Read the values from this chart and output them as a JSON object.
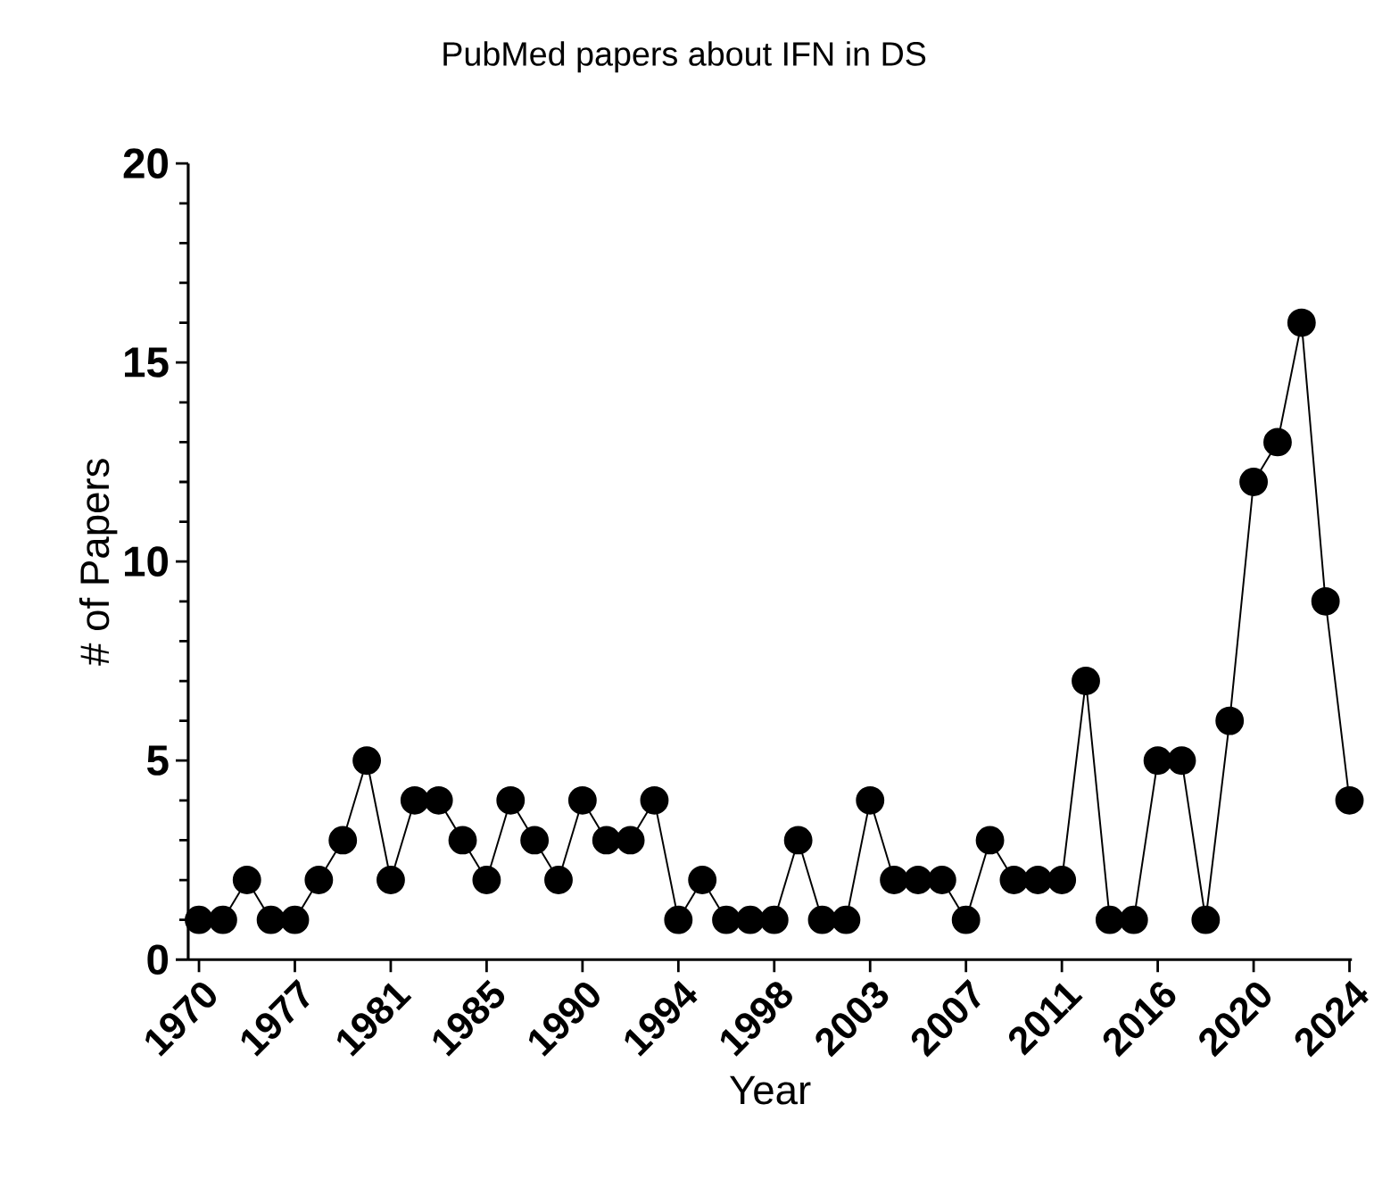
{
  "chart_data": {
    "type": "line",
    "title": "PubMed papers about IFN in DS",
    "xlabel": "Year",
    "ylabel": "# of Papers",
    "categories": [
      "1970",
      null,
      null,
      null,
      "1977",
      null,
      null,
      null,
      "1981",
      null,
      null,
      null,
      "1985",
      null,
      null,
      null,
      "1990",
      null,
      null,
      null,
      "1994",
      null,
      null,
      null,
      "1998",
      null,
      null,
      null,
      "2003",
      null,
      null,
      null,
      "2007",
      null,
      null,
      null,
      "2011",
      null,
      null,
      null,
      "2016",
      null,
      null,
      null,
      "2020",
      null,
      null,
      null,
      "2024"
    ],
    "values": [
      1,
      1,
      2,
      1,
      1,
      2,
      3,
      5,
      2,
      4,
      4,
      3,
      2,
      4,
      3,
      2,
      4,
      3,
      3,
      4,
      1,
      2,
      1,
      1,
      1,
      3,
      1,
      1,
      4,
      2,
      2,
      2,
      1,
      3,
      2,
      2,
      2,
      7,
      1,
      1,
      5,
      5,
      1,
      6,
      12,
      13,
      16,
      9,
      4
    ],
    "color": "#000000",
    "marker": "circle",
    "line_style": "solid",
    "ylim": [
      0,
      20
    ],
    "yticks": [
      0,
      5,
      10,
      15,
      20
    ]
  }
}
